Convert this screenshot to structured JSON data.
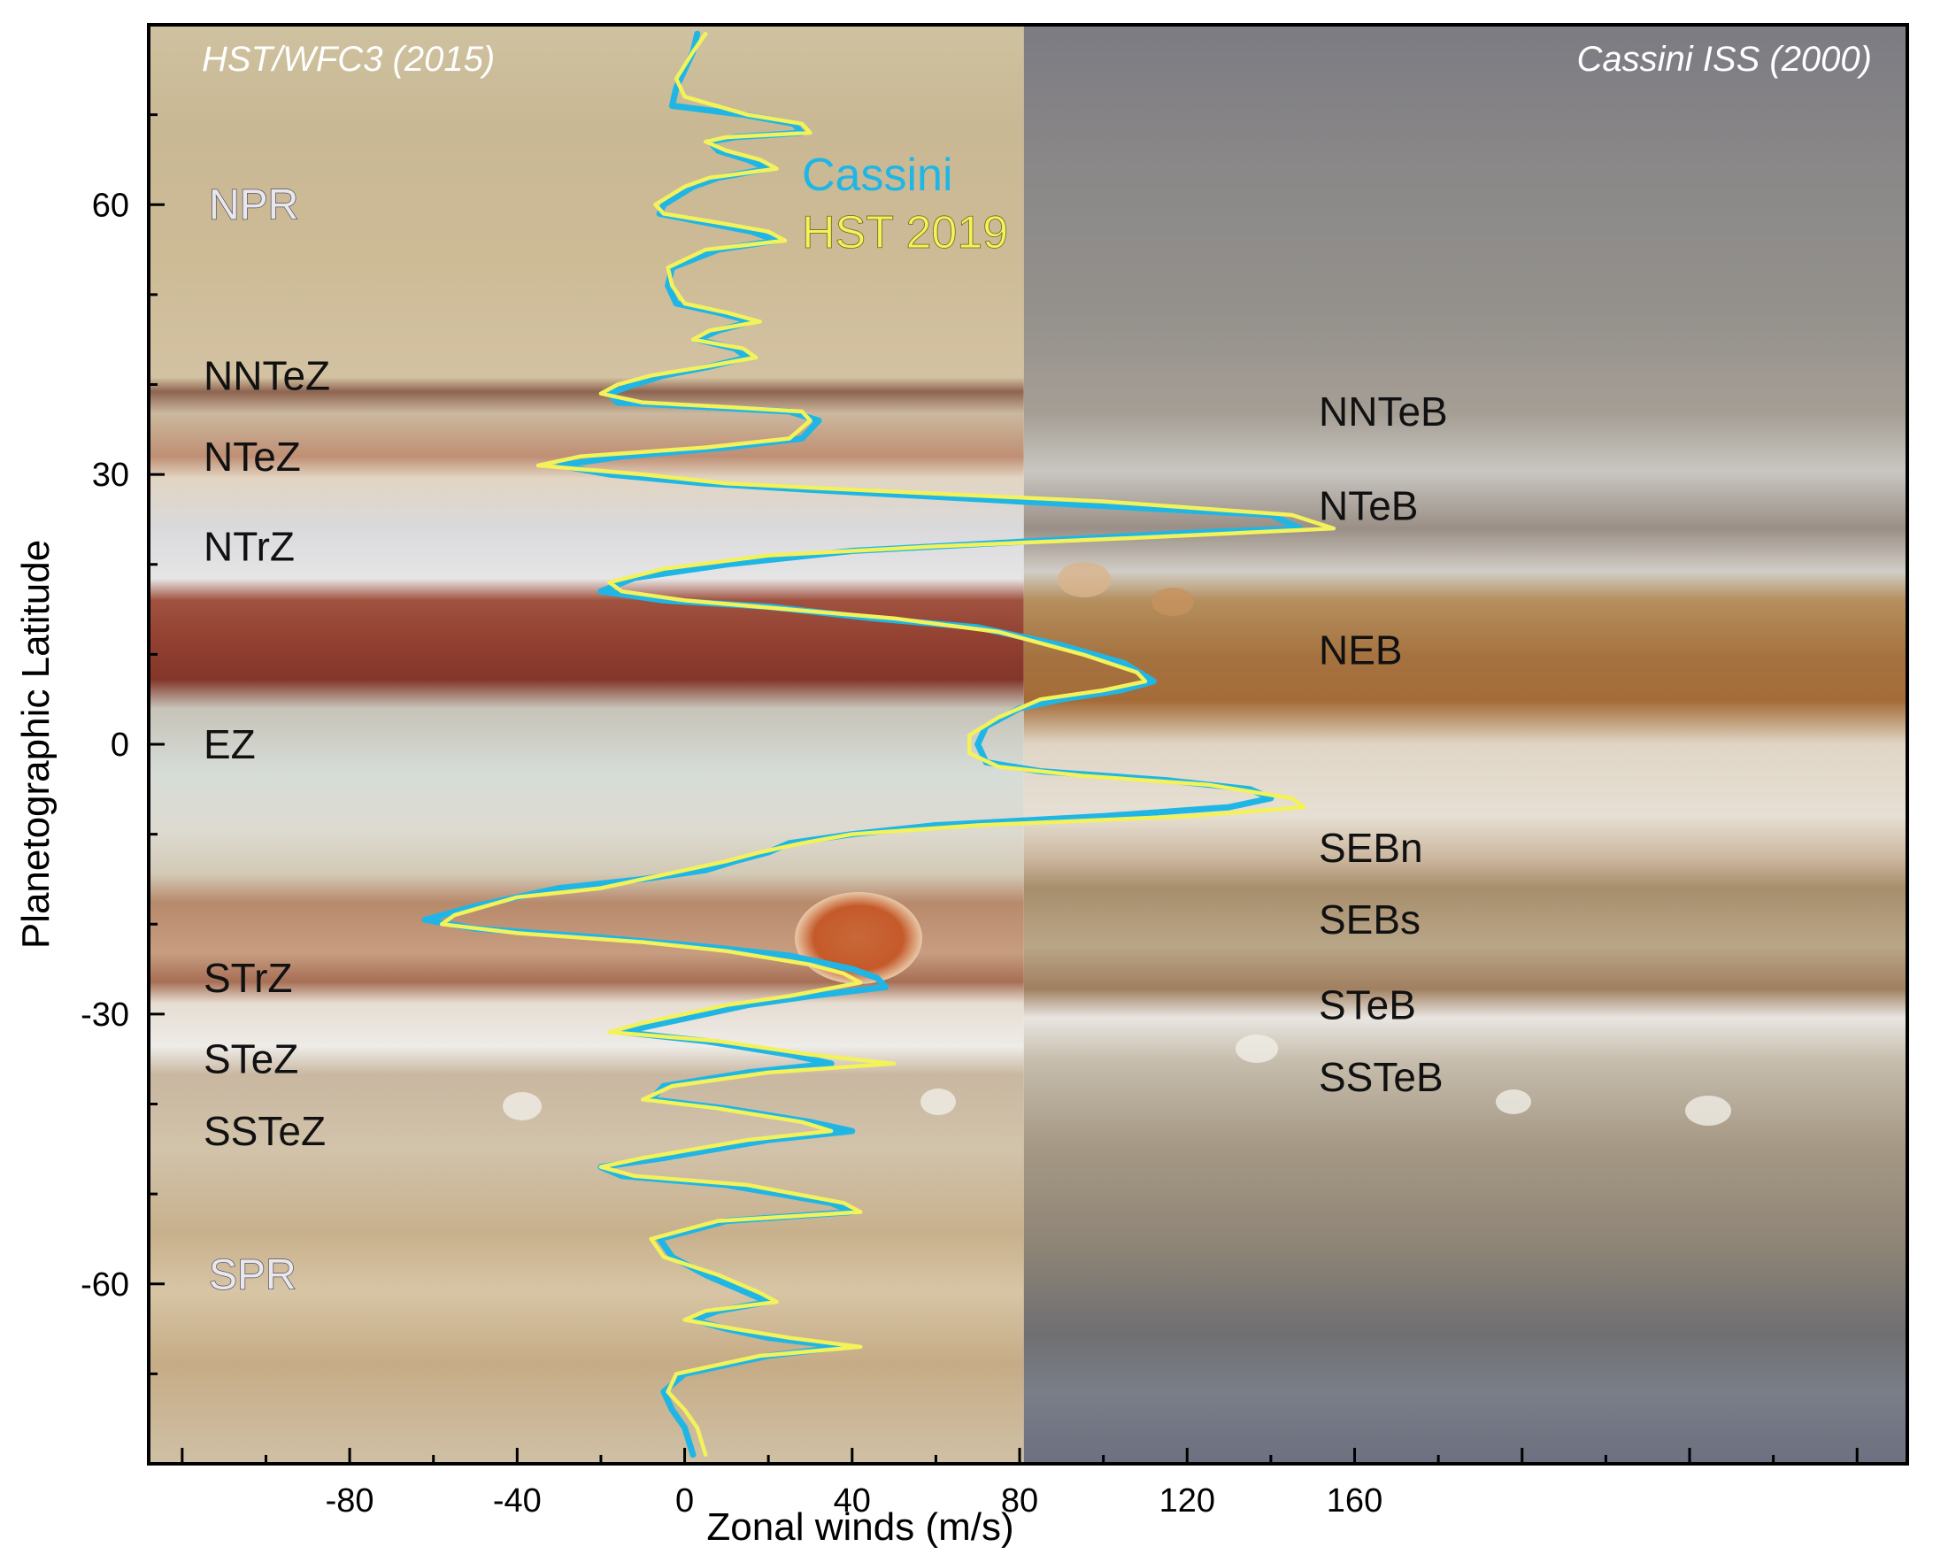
{
  "chart_data": {
    "type": "line",
    "xlabel": "Zonal winds (m/s)",
    "ylabel": "Planetographic Latitude",
    "xlim": [
      -128,
      292
    ],
    "ylim": [
      -80,
      80
    ],
    "xticks": [
      -80,
      -40,
      0,
      40,
      80,
      120,
      160
    ],
    "yticks": [
      60,
      30,
      0,
      -30,
      -60
    ],
    "grid": false,
    "legend_position": "top, inside plot",
    "panel_labels": {
      "left": "HST/WFC3 (2015)",
      "right": "Cassini ISS (2000)"
    },
    "panel_split_x": 81,
    "zone_labels": [
      {
        "text": "NPR",
        "lat": 60,
        "side": "left",
        "style": "polar"
      },
      {
        "text": "NNTeZ",
        "lat": 41,
        "side": "left"
      },
      {
        "text": "NTeZ",
        "lat": 32,
        "side": "left"
      },
      {
        "text": "NTrZ",
        "lat": 22,
        "side": "left"
      },
      {
        "text": "EZ",
        "lat": 0,
        "side": "left"
      },
      {
        "text": "STrZ",
        "lat": -26,
        "side": "left"
      },
      {
        "text": "STeZ",
        "lat": -35,
        "side": "left"
      },
      {
        "text": "SSTeZ",
        "lat": -43,
        "side": "left"
      },
      {
        "text": "SPR",
        "lat": -59,
        "side": "left",
        "style": "polar"
      },
      {
        "text": "NNTeB",
        "lat": 37,
        "side": "right"
      },
      {
        "text": "NTeB",
        "lat": 26.5,
        "side": "right"
      },
      {
        "text": "NEB",
        "lat": 10.5,
        "side": "right"
      },
      {
        "text": "SEBn",
        "lat": -11.5,
        "side": "right"
      },
      {
        "text": "SEBs",
        "lat": -19.5,
        "side": "right"
      },
      {
        "text": "STeB",
        "lat": -29,
        "side": "right"
      },
      {
        "text": "SSTeB",
        "lat": -37,
        "side": "right"
      }
    ],
    "series": [
      {
        "name": "Cassini",
        "color": "#1fb6e6",
        "points": [
          [
            3,
            79
          ],
          [
            2,
            77
          ],
          [
            0,
            75
          ],
          [
            -2,
            73
          ],
          [
            -3,
            71
          ],
          [
            14,
            70
          ],
          [
            26,
            69
          ],
          [
            28,
            68
          ],
          [
            12,
            67.5
          ],
          [
            6,
            67
          ],
          [
            8,
            66
          ],
          [
            15,
            65
          ],
          [
            20,
            64
          ],
          [
            8,
            63
          ],
          [
            2,
            62
          ],
          [
            -5,
            60
          ],
          [
            -6,
            59
          ],
          [
            5,
            58
          ],
          [
            16,
            57
          ],
          [
            22,
            56
          ],
          [
            8,
            55
          ],
          [
            -3,
            53
          ],
          [
            -4,
            51
          ],
          [
            -2,
            49
          ],
          [
            8,
            48
          ],
          [
            16,
            47
          ],
          [
            8,
            46
          ],
          [
            3,
            45
          ],
          [
            12,
            44
          ],
          [
            15,
            43
          ],
          [
            6,
            42
          ],
          [
            -5,
            41
          ],
          [
            -12,
            40
          ],
          [
            -18,
            39
          ],
          [
            -16,
            38
          ],
          [
            5,
            37.5
          ],
          [
            25,
            37
          ],
          [
            32,
            36
          ],
          [
            28,
            34
          ],
          [
            10,
            33
          ],
          [
            -15,
            32
          ],
          [
            -30,
            31
          ],
          [
            -18,
            30
          ],
          [
            5,
            29
          ],
          [
            30,
            28.3
          ],
          [
            80,
            27
          ],
          [
            140,
            25.5
          ],
          [
            147,
            24
          ],
          [
            120,
            23.5
          ],
          [
            80,
            22.5
          ],
          [
            40,
            21.5
          ],
          [
            10,
            20
          ],
          [
            -12,
            18.5
          ],
          [
            -20,
            17
          ],
          [
            -5,
            16
          ],
          [
            20,
            15.3
          ],
          [
            45,
            14
          ],
          [
            70,
            13
          ],
          [
            90,
            11
          ],
          [
            105,
            9
          ],
          [
            112,
            7
          ],
          [
            104,
            6
          ],
          [
            90,
            5
          ],
          [
            80,
            4
          ],
          [
            72,
            2
          ],
          [
            70,
            0
          ],
          [
            72,
            -2
          ],
          [
            85,
            -3
          ],
          [
            115,
            -4
          ],
          [
            135,
            -5
          ],
          [
            140,
            -6
          ],
          [
            130,
            -7
          ],
          [
            100,
            -8
          ],
          [
            60,
            -9
          ],
          [
            40,
            -10
          ],
          [
            25,
            -11
          ],
          [
            20,
            -12
          ],
          [
            12,
            -13
          ],
          [
            5,
            -14
          ],
          [
            -10,
            -15
          ],
          [
            -30,
            -16
          ],
          [
            -50,
            -18
          ],
          [
            -62,
            -19.5
          ],
          [
            -50,
            -20.5
          ],
          [
            -20,
            -21.5
          ],
          [
            5,
            -22.5
          ],
          [
            25,
            -23.5
          ],
          [
            40,
            -25
          ],
          [
            46,
            -26
          ],
          [
            48,
            -27
          ],
          [
            30,
            -28
          ],
          [
            15,
            -29
          ],
          [
            -5,
            -31
          ],
          [
            -15,
            -32
          ],
          [
            5,
            -33
          ],
          [
            25,
            -34.5
          ],
          [
            35,
            -35.5
          ],
          [
            15,
            -36.5
          ],
          [
            -5,
            -38
          ],
          [
            -8,
            -39.5
          ],
          [
            10,
            -40.5
          ],
          [
            30,
            -42
          ],
          [
            40,
            -43
          ],
          [
            20,
            -44
          ],
          [
            -5,
            -46
          ],
          [
            -20,
            -47
          ],
          [
            -15,
            -48
          ],
          [
            10,
            -49
          ],
          [
            35,
            -51
          ],
          [
            40,
            -52
          ],
          [
            10,
            -53
          ],
          [
            -6,
            -55
          ],
          [
            -3,
            -57
          ],
          [
            5,
            -59
          ],
          [
            15,
            -61
          ],
          [
            20,
            -62
          ],
          [
            8,
            -63
          ],
          [
            2,
            -64
          ],
          [
            10,
            -65
          ],
          [
            20,
            -66
          ],
          [
            38,
            -67
          ],
          [
            20,
            -68
          ],
          [
            0,
            -70
          ],
          [
            -5,
            -72
          ],
          [
            -3,
            -74
          ],
          [
            0,
            -76
          ],
          [
            2,
            -79
          ]
        ]
      },
      {
        "name": "HST 2019",
        "color": "#f3f25a",
        "points": [
          [
            5,
            79
          ],
          [
            2,
            77
          ],
          [
            -2,
            74
          ],
          [
            0,
            72
          ],
          [
            15,
            70
          ],
          [
            28,
            69
          ],
          [
            30,
            68
          ],
          [
            10,
            67.5
          ],
          [
            5,
            67
          ],
          [
            10,
            66
          ],
          [
            18,
            65
          ],
          [
            22,
            64
          ],
          [
            6,
            63
          ],
          [
            0,
            62
          ],
          [
            -7,
            60
          ],
          [
            -5,
            59
          ],
          [
            8,
            58
          ],
          [
            20,
            57
          ],
          [
            24,
            56
          ],
          [
            5,
            55
          ],
          [
            -4,
            53
          ],
          [
            -3,
            51
          ],
          [
            0,
            49
          ],
          [
            10,
            48
          ],
          [
            18,
            47
          ],
          [
            6,
            46
          ],
          [
            2,
            45
          ],
          [
            14,
            44
          ],
          [
            17,
            43
          ],
          [
            5,
            42
          ],
          [
            -8,
            41
          ],
          [
            -16,
            40
          ],
          [
            -20,
            39
          ],
          [
            -10,
            38
          ],
          [
            10,
            37.5
          ],
          [
            28,
            37
          ],
          [
            30,
            36
          ],
          [
            25,
            34
          ],
          [
            5,
            33
          ],
          [
            -25,
            32
          ],
          [
            -35,
            31
          ],
          [
            -10,
            30
          ],
          [
            10,
            29
          ],
          [
            40,
            28.3
          ],
          [
            100,
            27
          ],
          [
            145,
            25.5
          ],
          [
            155,
            24
          ],
          [
            110,
            23
          ],
          [
            60,
            22
          ],
          [
            20,
            21
          ],
          [
            -5,
            19.5
          ],
          [
            -18,
            18
          ],
          [
            -15,
            17
          ],
          [
            0,
            16
          ],
          [
            25,
            15
          ],
          [
            50,
            14
          ],
          [
            75,
            12.5
          ],
          [
            95,
            10
          ],
          [
            108,
            8
          ],
          [
            110,
            7
          ],
          [
            100,
            6
          ],
          [
            85,
            5
          ],
          [
            75,
            3
          ],
          [
            68,
            1
          ],
          [
            68,
            -1
          ],
          [
            75,
            -2.5
          ],
          [
            95,
            -3.5
          ],
          [
            125,
            -4.5
          ],
          [
            145,
            -6
          ],
          [
            148,
            -7
          ],
          [
            120,
            -8
          ],
          [
            70,
            -9
          ],
          [
            40,
            -10
          ],
          [
            28,
            -11
          ],
          [
            18,
            -12
          ],
          [
            10,
            -13
          ],
          [
            0,
            -14
          ],
          [
            -20,
            -16
          ],
          [
            -40,
            -17
          ],
          [
            -55,
            -19
          ],
          [
            -58,
            -20
          ],
          [
            -40,
            -21
          ],
          [
            -10,
            -22
          ],
          [
            10,
            -23
          ],
          [
            30,
            -24.5
          ],
          [
            38,
            -25.5
          ],
          [
            42,
            -26.5
          ],
          [
            25,
            -28
          ],
          [
            10,
            -29
          ],
          [
            -10,
            -31
          ],
          [
            -18,
            -32
          ],
          [
            8,
            -33
          ],
          [
            30,
            -34.5
          ],
          [
            50,
            -35.5
          ],
          [
            20,
            -36.5
          ],
          [
            -3,
            -38
          ],
          [
            -10,
            -39.5
          ],
          [
            8,
            -40.5
          ],
          [
            28,
            -42
          ],
          [
            35,
            -43
          ],
          [
            15,
            -44
          ],
          [
            -10,
            -46
          ],
          [
            -20,
            -47
          ],
          [
            -12,
            -48
          ],
          [
            15,
            -49
          ],
          [
            38,
            -51
          ],
          [
            42,
            -52
          ],
          [
            8,
            -53
          ],
          [
            -8,
            -55
          ],
          [
            -5,
            -57
          ],
          [
            8,
            -59
          ],
          [
            18,
            -61
          ],
          [
            22,
            -62
          ],
          [
            5,
            -63
          ],
          [
            0,
            -64
          ],
          [
            12,
            -65
          ],
          [
            25,
            -66
          ],
          [
            42,
            -67
          ],
          [
            18,
            -68
          ],
          [
            -2,
            -70
          ],
          [
            -4,
            -72
          ],
          [
            0,
            -74
          ],
          [
            3,
            -76
          ],
          [
            5,
            -79
          ]
        ]
      }
    ]
  }
}
